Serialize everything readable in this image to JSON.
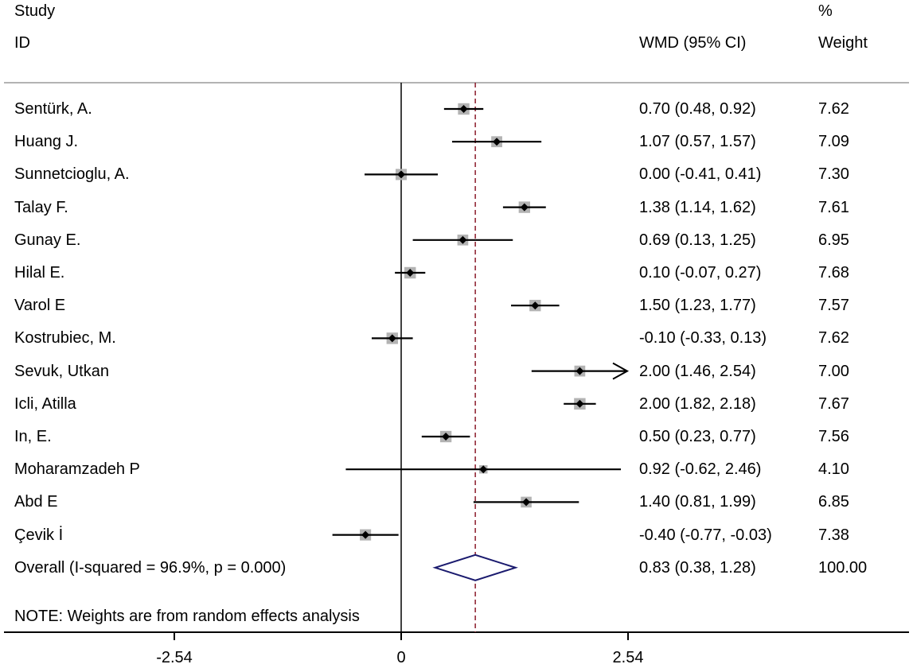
{
  "header": {
    "study_line1": "Study",
    "study_line2": "ID",
    "effect_label": "WMD (95% CI)",
    "weight_line1": "%",
    "weight_line2": "Weight"
  },
  "note": "NOTE: Weights are from random effects analysis",
  "chart_data": {
    "type": "forest",
    "measure": "WMD (95% CI)",
    "studies": [
      {
        "id": "Sentürk, A.",
        "est": 0.7,
        "lo": 0.48,
        "hi": 0.92,
        "ci_text": "0.70 (0.48, 0.92)",
        "weight": "7.62"
      },
      {
        "id": "Huang J.",
        "est": 1.07,
        "lo": 0.57,
        "hi": 1.57,
        "ci_text": "1.07 (0.57, 1.57)",
        "weight": "7.09"
      },
      {
        "id": "Sunnetcioglu, A.",
        "est": 0.0,
        "lo": -0.41,
        "hi": 0.41,
        "ci_text": "0.00 (-0.41, 0.41)",
        "weight": "7.30"
      },
      {
        "id": "Talay F.",
        "est": 1.38,
        "lo": 1.14,
        "hi": 1.62,
        "ci_text": "1.38 (1.14, 1.62)",
        "weight": "7.61"
      },
      {
        "id": "Gunay E.",
        "est": 0.69,
        "lo": 0.13,
        "hi": 1.25,
        "ci_text": "0.69 (0.13, 1.25)",
        "weight": "6.95"
      },
      {
        "id": "Hilal E.",
        "est": 0.1,
        "lo": -0.07,
        "hi": 0.27,
        "ci_text": "0.10 (-0.07, 0.27)",
        "weight": "7.68"
      },
      {
        "id": "Varol E",
        "est": 1.5,
        "lo": 1.23,
        "hi": 1.77,
        "ci_text": "1.50 (1.23, 1.77)",
        "weight": "7.57"
      },
      {
        "id": "Kostrubiec, M.",
        "est": -0.1,
        "lo": -0.33,
        "hi": 0.13,
        "ci_text": "-0.10 (-0.33, 0.13)",
        "weight": "7.62"
      },
      {
        "id": "Sevuk, Utkan",
        "est": 2.0,
        "lo": 1.46,
        "hi": 2.54,
        "ci_text": "2.00 (1.46, 2.54)",
        "weight": "7.00",
        "arrow_right": true
      },
      {
        "id": "Icli, Atilla",
        "est": 2.0,
        "lo": 1.82,
        "hi": 2.18,
        "ci_text": "2.00 (1.82, 2.18)",
        "weight": "7.67"
      },
      {
        "id": "In, E.",
        "est": 0.5,
        "lo": 0.23,
        "hi": 0.77,
        "ci_text": "0.50 (0.23, 0.77)",
        "weight": "7.56"
      },
      {
        "id": "Moharamzadeh P",
        "est": 0.92,
        "lo": -0.62,
        "hi": 2.46,
        "ci_text": "0.92 (-0.62, 2.46)",
        "weight": "4.10"
      },
      {
        "id": "Abd E",
        "est": 1.4,
        "lo": 0.81,
        "hi": 1.99,
        "ci_text": "1.40 (0.81, 1.99)",
        "weight": "6.85"
      },
      {
        "id": "Çevik İ",
        "est": -0.4,
        "lo": -0.77,
        "hi": -0.03,
        "ci_text": "-0.40 (-0.77, -0.03)",
        "weight": "7.38"
      }
    ],
    "overall": {
      "label": "Overall  (I-squared = 96.9%, p = 0.000)",
      "est": 0.83,
      "lo": 0.38,
      "hi": 1.28,
      "ci_text": "0.83 (0.38, 1.28)",
      "weight": "100.00"
    },
    "x_ticks": [
      {
        "value": -2.54,
        "label": "-2.54"
      },
      {
        "value": 0,
        "label": "0"
      },
      {
        "value": 2.54,
        "label": "2.54"
      }
    ],
    "xlim": [
      -2.54,
      2.54
    ],
    "colors": {
      "ci_line": "#000000",
      "weight_box": "#b3b3b3",
      "point": "#000000",
      "null_line": "#000000",
      "overall_line": "#8b1a2a",
      "diamond": "#1a1a6e",
      "axis": "#000000",
      "separator": "#b3b3b3"
    }
  }
}
